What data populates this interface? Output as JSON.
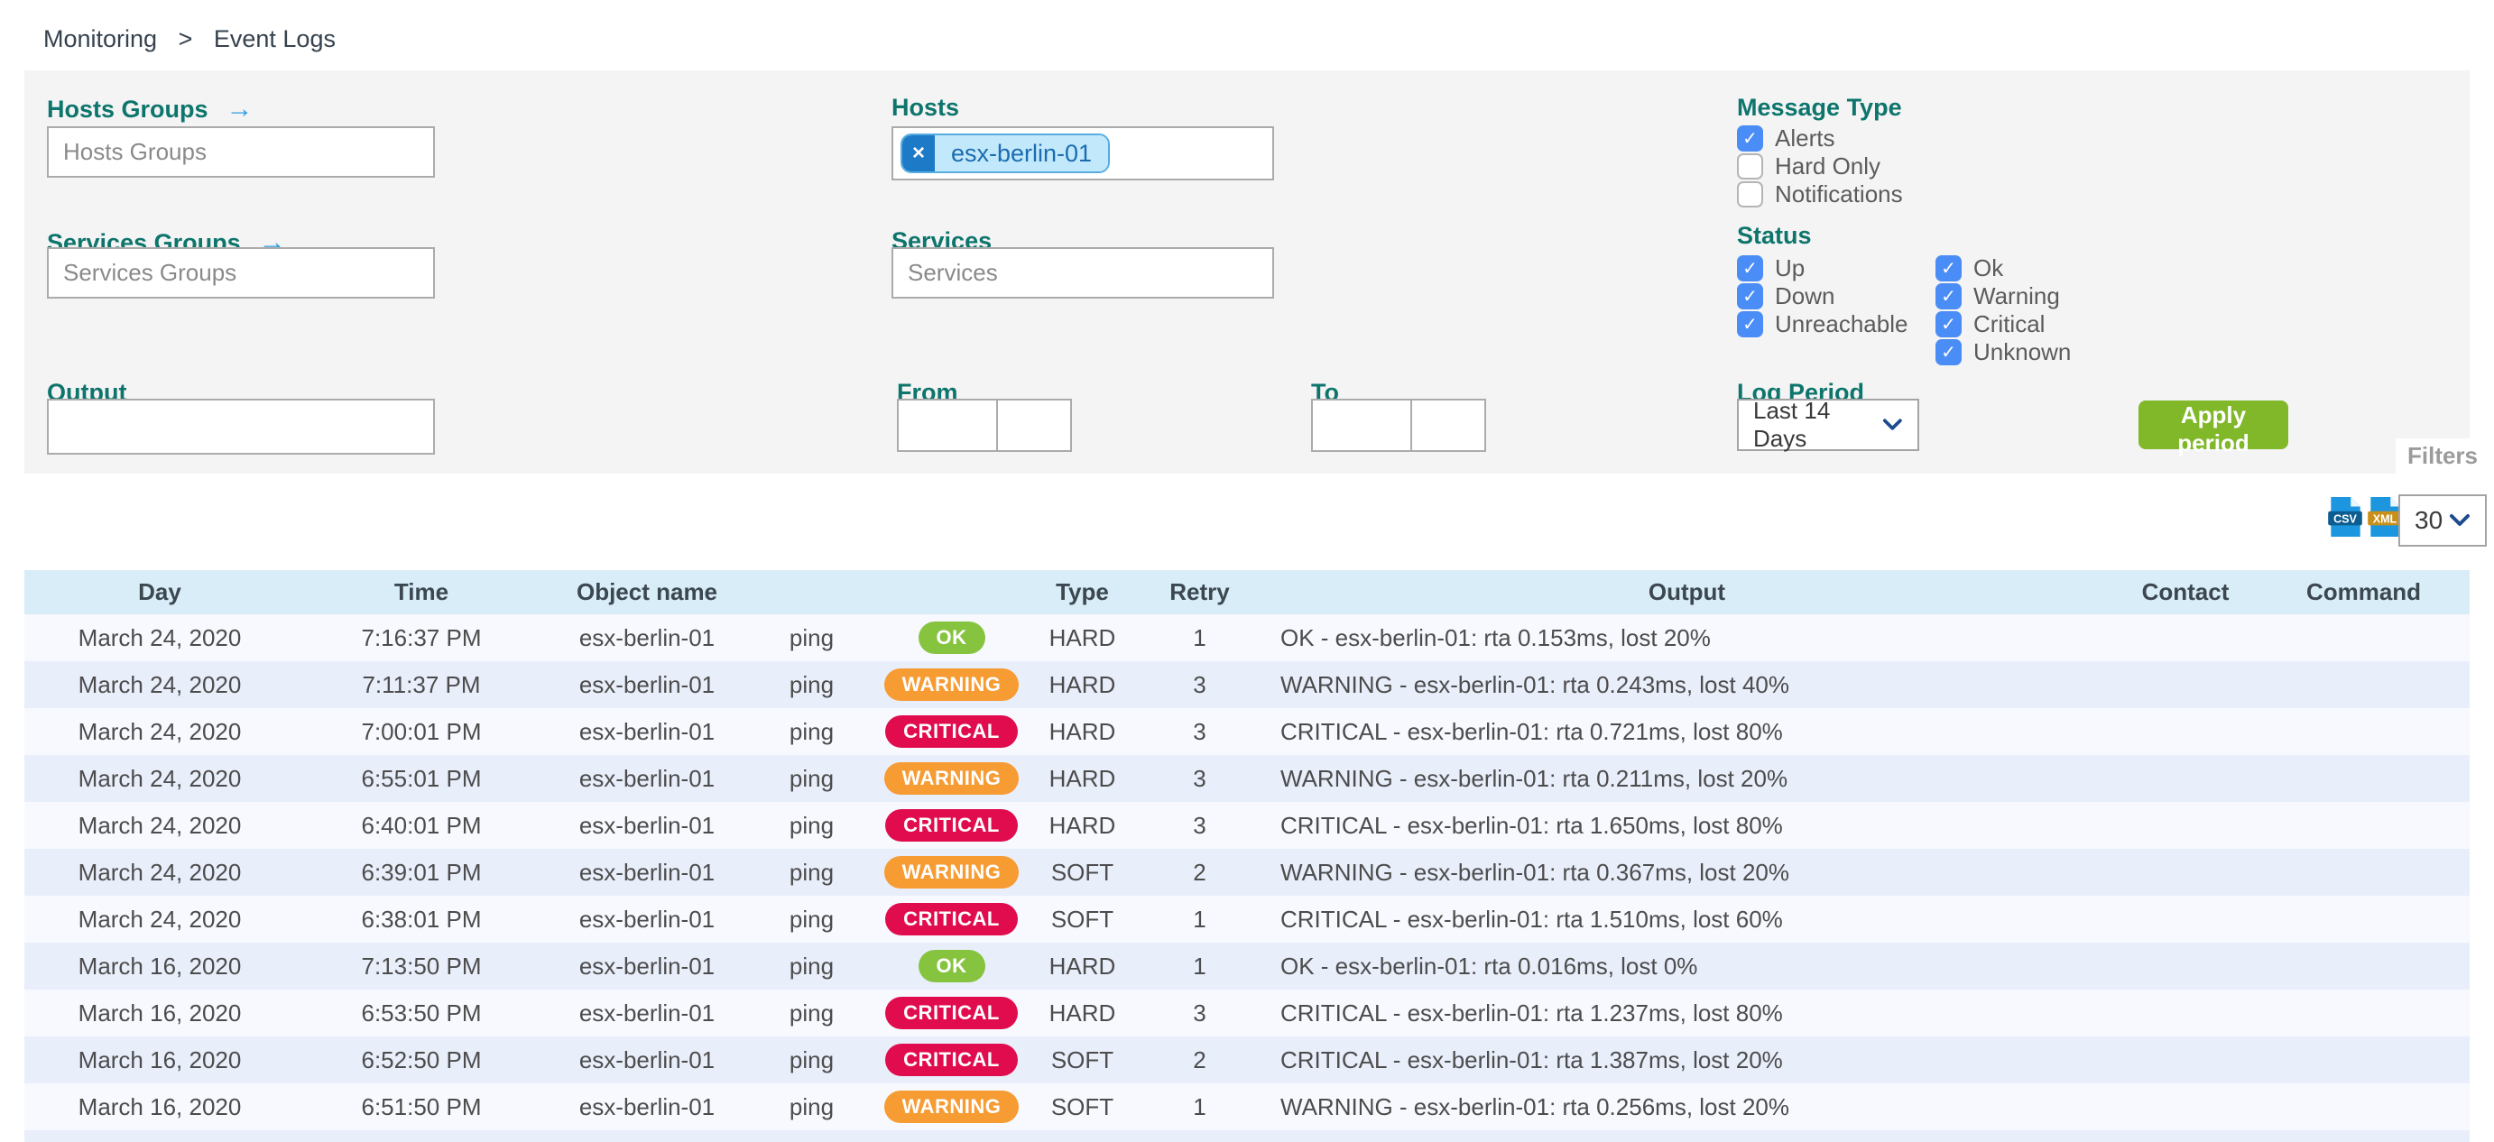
{
  "breadcrumb": {
    "items": [
      "Monitoring",
      "Event Logs"
    ],
    "separator": ">"
  },
  "icons": {
    "arrow_right": "→",
    "close": "×",
    "check": "✓"
  },
  "filter_panel": {
    "hosts_groups": {
      "label": "Hosts Groups",
      "placeholder": "Hosts Groups"
    },
    "services_groups": {
      "label": "Services Groups",
      "placeholder": "Services Groups"
    },
    "hosts": {
      "label": "Hosts",
      "selected_chip": "esx-berlin-01"
    },
    "services": {
      "label": "Services",
      "placeholder": "Services"
    },
    "output": {
      "label": "Output",
      "value": ""
    },
    "from": {
      "label": "From",
      "date_value": "",
      "time_value": ""
    },
    "to": {
      "label": "To",
      "date_value": "",
      "time_value": ""
    },
    "message_type": {
      "label": "Message Type",
      "options": [
        {
          "label": "Alerts",
          "checked": true
        },
        {
          "label": "Hard Only",
          "checked": false
        },
        {
          "label": "Notifications",
          "checked": false
        }
      ]
    },
    "status": {
      "label": "Status",
      "columns": [
        [
          {
            "label": "Up",
            "checked": true
          },
          {
            "label": "Down",
            "checked": true
          },
          {
            "label": "Unreachable",
            "checked": true
          }
        ],
        [
          {
            "label": "Ok",
            "checked": true
          },
          {
            "label": "Warning",
            "checked": true
          },
          {
            "label": "Critical",
            "checked": true
          },
          {
            "label": "Unknown",
            "checked": true
          }
        ]
      ]
    },
    "log_period": {
      "label": "Log Period",
      "value": "Last 14 Days"
    },
    "apply_button": "Apply period",
    "filters_tab": "Filters"
  },
  "toolbar": {
    "csv_label": "CSV",
    "xml_label": "XML",
    "page_size": "30"
  },
  "table": {
    "headers": [
      "Day",
      "Time",
      "Object name",
      "",
      "",
      "Type",
      "Retry",
      "Output",
      "Contact",
      "Command"
    ],
    "rows": [
      {
        "day": "March 24, 2020",
        "time": "7:16:37 PM",
        "object": "esx-berlin-01",
        "service": "ping",
        "status": "OK",
        "type": "HARD",
        "retry": "1",
        "output": "OK - esx-berlin-01: rta 0.153ms, lost 20%",
        "contact": "",
        "command": ""
      },
      {
        "day": "March 24, 2020",
        "time": "7:11:37 PM",
        "object": "esx-berlin-01",
        "service": "ping",
        "status": "WARNING",
        "type": "HARD",
        "retry": "3",
        "output": "WARNING - esx-berlin-01: rta 0.243ms, lost 40%",
        "contact": "",
        "command": ""
      },
      {
        "day": "March 24, 2020",
        "time": "7:00:01 PM",
        "object": "esx-berlin-01",
        "service": "ping",
        "status": "CRITICAL",
        "type": "HARD",
        "retry": "3",
        "output": "CRITICAL - esx-berlin-01: rta 0.721ms, lost 80%",
        "contact": "",
        "command": ""
      },
      {
        "day": "March 24, 2020",
        "time": "6:55:01 PM",
        "object": "esx-berlin-01",
        "service": "ping",
        "status": "WARNING",
        "type": "HARD",
        "retry": "3",
        "output": "WARNING - esx-berlin-01: rta 0.211ms, lost 20%",
        "contact": "",
        "command": ""
      },
      {
        "day": "March 24, 2020",
        "time": "6:40:01 PM",
        "object": "esx-berlin-01",
        "service": "ping",
        "status": "CRITICAL",
        "type": "HARD",
        "retry": "3",
        "output": "CRITICAL - esx-berlin-01: rta 1.650ms, lost 80%",
        "contact": "",
        "command": ""
      },
      {
        "day": "March 24, 2020",
        "time": "6:39:01 PM",
        "object": "esx-berlin-01",
        "service": "ping",
        "status": "WARNING",
        "type": "SOFT",
        "retry": "2",
        "output": "WARNING - esx-berlin-01: rta 0.367ms, lost 20%",
        "contact": "",
        "command": ""
      },
      {
        "day": "March 24, 2020",
        "time": "6:38:01 PM",
        "object": "esx-berlin-01",
        "service": "ping",
        "status": "CRITICAL",
        "type": "SOFT",
        "retry": "1",
        "output": "CRITICAL - esx-berlin-01: rta 1.510ms, lost 60%",
        "contact": "",
        "command": ""
      },
      {
        "day": "March 16, 2020",
        "time": "7:13:50 PM",
        "object": "esx-berlin-01",
        "service": "ping",
        "status": "OK",
        "type": "HARD",
        "retry": "1",
        "output": "OK - esx-berlin-01: rta 0.016ms, lost 0%",
        "contact": "",
        "command": ""
      },
      {
        "day": "March 16, 2020",
        "time": "6:53:50 PM",
        "object": "esx-berlin-01",
        "service": "ping",
        "status": "CRITICAL",
        "type": "HARD",
        "retry": "3",
        "output": "CRITICAL - esx-berlin-01: rta 1.237ms, lost 80%",
        "contact": "",
        "command": ""
      },
      {
        "day": "March 16, 2020",
        "time": "6:52:50 PM",
        "object": "esx-berlin-01",
        "service": "ping",
        "status": "CRITICAL",
        "type": "SOFT",
        "retry": "2",
        "output": "CRITICAL - esx-berlin-01: rta 1.387ms, lost 20%",
        "contact": "",
        "command": ""
      },
      {
        "day": "March 16, 2020",
        "time": "6:51:50 PM",
        "object": "esx-berlin-01",
        "service": "ping",
        "status": "WARNING",
        "type": "SOFT",
        "retry": "1",
        "output": "WARNING - esx-berlin-01: rta 0.256ms, lost 20%",
        "contact": "",
        "command": ""
      }
    ]
  },
  "colors": {
    "accent_teal": "#0d756c",
    "checkbox_blue": "#4b8df6",
    "ok_green": "#86c440",
    "warning_orange": "#f79b33",
    "critical_red": "#e10c4e",
    "apply_green": "#80b829",
    "table_header_blue": "#d8edf7"
  }
}
